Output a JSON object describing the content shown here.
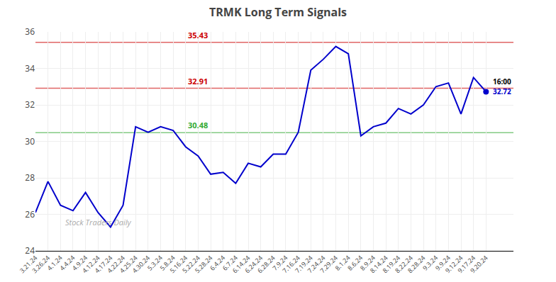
{
  "chart_data": {
    "type": "line",
    "title": "TRMK Long Term Signals",
    "categories": [
      "3.21.24",
      "3.26.24",
      "4.1.24",
      "4.4.24",
      "4.9.24",
      "4.12.24",
      "4.17.24",
      "4.22.24",
      "4.25.24",
      "4.30.24",
      "5.3.24",
      "5.8.24",
      "5.16.24",
      "5.22.24",
      "5.28.24",
      "6.4.24",
      "6.7.24",
      "6.14.24",
      "6.24.24",
      "6.28.24",
      "7.9.24",
      "7.16.24",
      "7.19.24",
      "7.24.24",
      "7.29.24",
      "8.1.24",
      "8.6.24",
      "8.9.24",
      "8.14.24",
      "8.19.24",
      "8.22.24",
      "8.28.24",
      "9.3.24",
      "9.9.24",
      "9.12.24",
      "9.17.24",
      "9.20.24"
    ],
    "values": [
      26.1,
      27.8,
      26.5,
      26.2,
      27.2,
      26.1,
      25.3,
      26.5,
      30.8,
      30.5,
      30.8,
      30.6,
      29.7,
      29.2,
      28.2,
      28.3,
      27.7,
      28.8,
      28.6,
      29.3,
      29.3,
      30.5,
      33.9,
      34.5,
      35.2,
      34.8,
      30.3,
      30.8,
      31.0,
      31.8,
      31.5,
      32.0,
      33.0,
      33.2,
      31.5,
      33.5,
      32.72
    ],
    "color": "#0000cc",
    "hlines": [
      {
        "value": 35.43,
        "color": "#cc0000"
      },
      {
        "value": 32.91,
        "color": "#cc0000"
      },
      {
        "value": 30.48,
        "color": "#33aa33"
      }
    ],
    "last_price": {
      "value": 32.72,
      "time": "16:00"
    },
    "watermark": "Stock Traders Daily",
    "ylim": [
      24,
      36
    ],
    "yticks": [
      24,
      26,
      28,
      30,
      32,
      34,
      36
    ],
    "grid": true
  }
}
